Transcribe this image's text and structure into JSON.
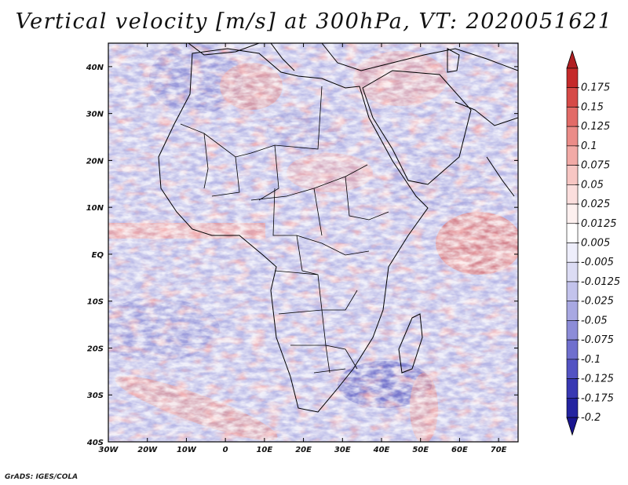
{
  "title": "Vertical velocity [m/s] at 300hPa, VT: 2020051621",
  "credit": "GrADS: IGES/COLA",
  "map": {
    "lon_range": [
      -30,
      75
    ],
    "lat_range": [
      -40,
      45
    ],
    "lon_ticks": [
      {
        "value": -30,
        "label": "30W"
      },
      {
        "value": -20,
        "label": "20W"
      },
      {
        "value": -10,
        "label": "10W"
      },
      {
        "value": 0,
        "label": "0"
      },
      {
        "value": 10,
        "label": "10E"
      },
      {
        "value": 20,
        "label": "20E"
      },
      {
        "value": 30,
        "label": "30E"
      },
      {
        "value": 40,
        "label": "40E"
      },
      {
        "value": 50,
        "label": "50E"
      },
      {
        "value": 60,
        "label": "60E"
      },
      {
        "value": 70,
        "label": "70E"
      }
    ],
    "lat_ticks": [
      {
        "value": 40,
        "label": "40N"
      },
      {
        "value": 30,
        "label": "30N"
      },
      {
        "value": 20,
        "label": "20N"
      },
      {
        "value": 10,
        "label": "10N"
      },
      {
        "value": 0,
        "label": "EQ"
      },
      {
        "value": -10,
        "label": "10S"
      },
      {
        "value": -20,
        "label": "20S"
      },
      {
        "value": -30,
        "label": "30S"
      },
      {
        "value": -40,
        "label": "40S"
      }
    ]
  },
  "colorbar": {
    "top_color": "#b01f22",
    "bottom_color": "#1a1590",
    "bands": [
      "#c52a2a",
      "#d64a47",
      "#e26b67",
      "#eb8c88",
      "#f2aaa6",
      "#f7c6c3",
      "#fbdedd",
      "#fdf0ef",
      "#ffffff",
      "#eeeefb",
      "#dcdcf4",
      "#c3c3ec",
      "#a8a8e2",
      "#8c8cd8",
      "#6f6fce",
      "#5353c3",
      "#3838b3",
      "#2323a0"
    ],
    "labels": [
      "0.175",
      "0.15",
      "0.125",
      "0.1",
      "0.075",
      "0.05",
      "0.025",
      "0.0125",
      "0.005",
      "-0.005",
      "-0.0125",
      "-0.025",
      "-0.05",
      "-0.075",
      "-0.1",
      "-0.125",
      "-0.175",
      "-0.2"
    ]
  }
}
